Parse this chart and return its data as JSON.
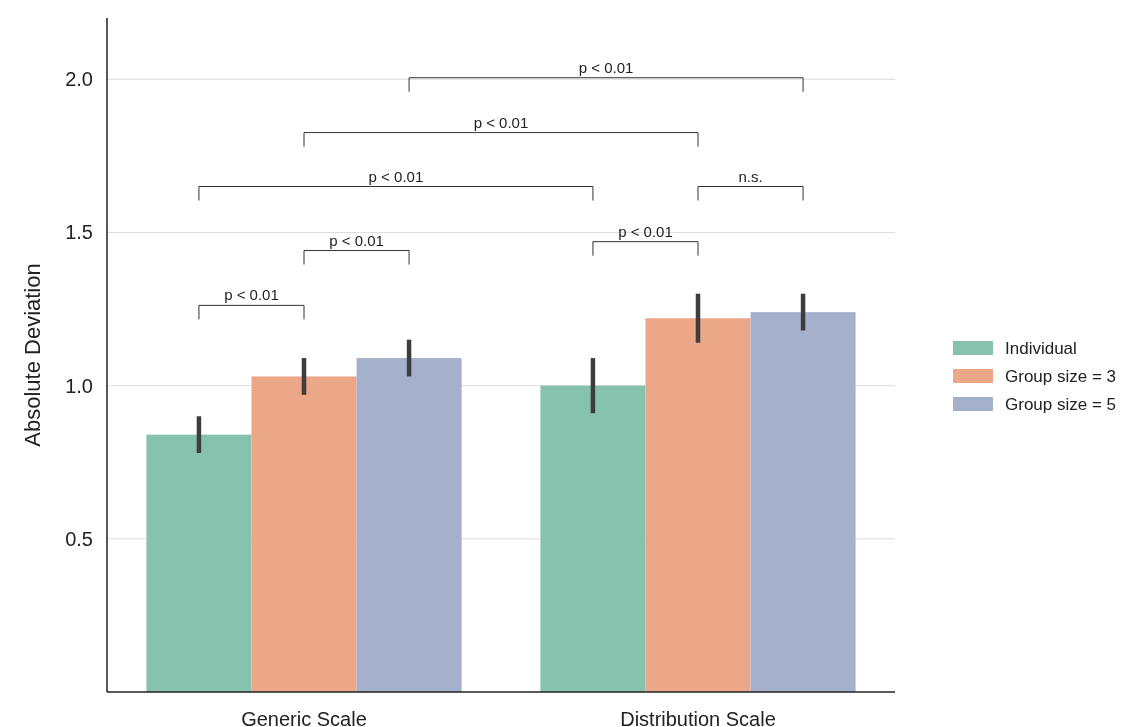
{
  "chart_data": {
    "type": "bar",
    "ylabel": "Absolute Deviation",
    "categories": [
      "Generic Scale",
      "Distribution Scale"
    ],
    "series": [
      {
        "name": "Individual",
        "color": "#86c2ad",
        "values": [
          0.84,
          1.0
        ],
        "errors": [
          [
            0.78,
            0.9
          ],
          [
            0.91,
            1.09
          ]
        ]
      },
      {
        "name": "Group size = 3",
        "color": "#eca688",
        "values": [
          1.03,
          1.22
        ],
        "errors": [
          [
            0.97,
            1.09
          ],
          [
            1.14,
            1.3
          ]
        ]
      },
      {
        "name": "Group size = 5",
        "color": "#a5b0cc",
        "values": [
          1.09,
          1.24
        ],
        "errors": [
          [
            1.03,
            1.15
          ],
          [
            1.18,
            1.3
          ]
        ]
      }
    ],
    "ylim": [
      0,
      2.2
    ],
    "yticks": [
      0.5,
      {
        "value": 1,
        "label": "1.0"
      },
      1.5,
      {
        "value": 2,
        "label": "2.0"
      }
    ],
    "grid": "y",
    "legend": "right",
    "annotations": [
      "p < 0.01",
      "p < 0.01",
      "p < 0.01",
      "p < 0.01",
      "n.s.",
      "p < 0.01",
      "p < 0.01"
    ]
  }
}
